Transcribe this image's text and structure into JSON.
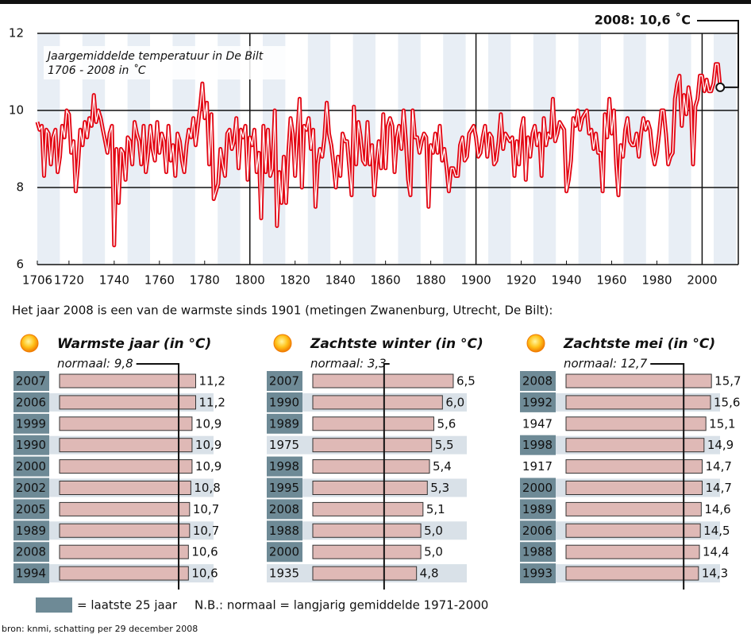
{
  "chart_data": [
    {
      "type": "line",
      "title": "Jaargemiddelde temperatuur in De Bilt",
      "subtitle": "1706 - 2008 in ˚C",
      "annotation": "2008: 10,6 ˚C",
      "color": "#e30613",
      "grid": true,
      "xlim": [
        1706,
        2016
      ],
      "ylim": [
        6,
        12
      ],
      "xticks": [
        1706,
        1720,
        1740,
        1760,
        1780,
        1800,
        1820,
        1840,
        1860,
        1880,
        1900,
        1920,
        1940,
        1960,
        1980,
        2000
      ],
      "yticks": [
        6,
        8,
        10,
        12
      ],
      "x": [
        1706,
        1707,
        1708,
        1709,
        1710,
        1711,
        1712,
        1713,
        1714,
        1715,
        1716,
        1717,
        1718,
        1719,
        1720,
        1721,
        1722,
        1723,
        1724,
        1725,
        1726,
        1727,
        1728,
        1729,
        1730,
        1731,
        1732,
        1733,
        1734,
        1735,
        1736,
        1737,
        1738,
        1739,
        1740,
        1741,
        1742,
        1743,
        1744,
        1745,
        1746,
        1747,
        1748,
        1749,
        1750,
        1751,
        1752,
        1753,
        1754,
        1755,
        1756,
        1757,
        1758,
        1759,
        1760,
        1761,
        1762,
        1763,
        1764,
        1765,
        1766,
        1767,
        1768,
        1769,
        1770,
        1771,
        1772,
        1773,
        1774,
        1775,
        1776,
        1777,
        1778,
        1779,
        1780,
        1781,
        1782,
        1783,
        1784,
        1785,
        1786,
        1787,
        1788,
        1789,
        1790,
        1791,
        1792,
        1793,
        1794,
        1795,
        1796,
        1797,
        1798,
        1799,
        1800,
        1801,
        1802,
        1803,
        1804,
        1805,
        1806,
        1807,
        1808,
        1809,
        1810,
        1811,
        1812,
        1813,
        1814,
        1815,
        1816,
        1817,
        1818,
        1819,
        1820,
        1821,
        1822,
        1823,
        1824,
        1825,
        1826,
        1827,
        1828,
        1829,
        1830,
        1831,
        1832,
        1833,
        1834,
        1835,
        1836,
        1837,
        1838,
        1839,
        1840,
        1841,
        1842,
        1843,
        1844,
        1845,
        1846,
        1847,
        1848,
        1849,
        1850,
        1851,
        1852,
        1853,
        1854,
        1855,
        1856,
        1857,
        1858,
        1859,
        1860,
        1861,
        1862,
        1863,
        1864,
        1865,
        1866,
        1867,
        1868,
        1869,
        1870,
        1871,
        1872,
        1873,
        1874,
        1875,
        1876,
        1877,
        1878,
        1879,
        1880,
        1881,
        1882,
        1883,
        1884,
        1885,
        1886,
        1887,
        1888,
        1889,
        1890,
        1891,
        1892,
        1893,
        1894,
        1895,
        1896,
        1897,
        1898,
        1899,
        1900,
        1901,
        1902,
        1903,
        1904,
        1905,
        1906,
        1907,
        1908,
        1909,
        1910,
        1911,
        1912,
        1913,
        1914,
        1915,
        1916,
        1917,
        1918,
        1919,
        1920,
        1921,
        1922,
        1923,
        1924,
        1925,
        1926,
        1927,
        1928,
        1929,
        1930,
        1931,
        1932,
        1933,
        1934,
        1935,
        1936,
        1937,
        1938,
        1939,
        1940,
        1941,
        1942,
        1943,
        1944,
        1945,
        1946,
        1947,
        1948,
        1949,
        1950,
        1951,
        1952,
        1953,
        1954,
        1955,
        1956,
        1957,
        1958,
        1959,
        1960,
        1961,
        1962,
        1963,
        1964,
        1965,
        1966,
        1967,
        1968,
        1969,
        1970,
        1971,
        1972,
        1973,
        1974,
        1975,
        1976,
        1977,
        1978,
        1979,
        1980,
        1981,
        1982,
        1983,
        1984,
        1985,
        1986,
        1987,
        1988,
        1989,
        1990,
        1991,
        1992,
        1993,
        1994,
        1995,
        1996,
        1997,
        1998,
        1999,
        2000,
        2001,
        2002,
        2003,
        2004,
        2005,
        2006,
        2007,
        2008
      ],
      "values": [
        9.7,
        9.5,
        9.6,
        8.3,
        9.5,
        9.4,
        8.6,
        9.3,
        9.5,
        8.4,
        8.8,
        9.6,
        9.3,
        10.0,
        9.9,
        8.9,
        9.2,
        7.9,
        8.6,
        9.5,
        9.1,
        9.7,
        9.3,
        9.8,
        9.6,
        10.4,
        9.7,
        10.0,
        9.8,
        9.5,
        9.2,
        8.9,
        9.4,
        9.6,
        6.5,
        9.0,
        7.6,
        9.0,
        8.9,
        8.2,
        9.3,
        9.2,
        8.6,
        9.7,
        9.4,
        9.2,
        8.6,
        9.6,
        8.4,
        8.9,
        9.6,
        9.0,
        8.7,
        9.7,
        8.9,
        9.4,
        9.2,
        8.4,
        9.6,
        8.7,
        9.1,
        8.3,
        9.4,
        9.2,
        8.7,
        8.4,
        9.1,
        9.5,
        9.3,
        9.8,
        9.1,
        9.6,
        10.1,
        10.7,
        9.8,
        10.2,
        8.6,
        9.9,
        7.7,
        7.9,
        8.1,
        9.0,
        8.6,
        8.3,
        9.4,
        9.5,
        9.0,
        9.2,
        9.8,
        8.5,
        9.5,
        9.3,
        9.6,
        8.2,
        9.3,
        9.1,
        9.5,
        8.4,
        8.9,
        7.2,
        9.6,
        8.4,
        9.5,
        8.3,
        8.5,
        10.0,
        7.0,
        8.4,
        7.6,
        8.8,
        7.6,
        8.9,
        9.8,
        9.4,
        8.3,
        9.4,
        10.3,
        8.0,
        9.6,
        9.5,
        9.8,
        9.0,
        9.5,
        7.5,
        8.6,
        9.0,
        8.8,
        9.3,
        10.2,
        9.4,
        9.1,
        8.6,
        8.0,
        8.8,
        8.3,
        9.4,
        9.2,
        9.2,
        8.5,
        7.8,
        10.1,
        8.6,
        9.7,
        9.3,
        8.7,
        8.6,
        9.7,
        8.6,
        9.1,
        7.8,
        8.6,
        9.2,
        8.5,
        9.9,
        8.5,
        9.6,
        9.8,
        9.6,
        8.4,
        9.3,
        9.6,
        9.0,
        10.0,
        9.2,
        8.2,
        7.8,
        10.0,
        9.3,
        9.3,
        8.9,
        9.2,
        9.4,
        9.3,
        7.5,
        9.1,
        8.9,
        9.4,
        8.9,
        9.6,
        8.7,
        9.0,
        8.5,
        7.9,
        8.5,
        8.5,
        8.3,
        8.3,
        9.1,
        9.3,
        8.7,
        8.8,
        9.4,
        9.5,
        9.6,
        9.3,
        8.8,
        8.9,
        9.3,
        9.6,
        8.8,
        9.4,
        9.3,
        8.6,
        8.7,
        9.2,
        9.9,
        9.0,
        9.4,
        9.3,
        9.2,
        9.3,
        8.3,
        9.2,
        8.6,
        9.5,
        9.8,
        8.2,
        9.3,
        8.8,
        9.4,
        9.6,
        9.1,
        9.4,
        8.3,
        9.8,
        9.1,
        9.4,
        9.3,
        10.3,
        9.2,
        9.4,
        9.7,
        9.6,
        9.5,
        7.9,
        8.2,
        8.7,
        9.8,
        9.6,
        10.0,
        9.5,
        9.8,
        9.9,
        10.0,
        9.4,
        9.5,
        9.0,
        9.4,
        8.9,
        8.9,
        7.9,
        9.9,
        9.3,
        10.3,
        9.4,
        10.0,
        8.6,
        7.8,
        9.1,
        8.8,
        9.5,
        9.8,
        9.2,
        9.1,
        9.1,
        9.4,
        8.8,
        9.4,
        9.8,
        9.5,
        9.7,
        9.5,
        8.9,
        8.6,
        8.9,
        9.4,
        10.0,
        10.0,
        9.4,
        8.6,
        8.8,
        8.9,
        10.3,
        10.7,
        10.9,
        9.6,
        10.4,
        9.9,
        10.6,
        10.2,
        8.6,
        10.1,
        10.3,
        10.9,
        10.9,
        10.5,
        10.8,
        10.5,
        10.5,
        10.7,
        11.2,
        11.2,
        10.6
      ]
    },
    {
      "type": "bar",
      "orientation": "horizontal",
      "title": "Warmste jaar (in °C)",
      "color": "#dfb9b6",
      "xlim": [
        0,
        16
      ],
      "reference": {
        "value": 9.8,
        "label": "normaal: 9,8"
      },
      "categories": [
        "2007",
        "2006",
        "1999",
        "1990",
        "2000",
        "2002",
        "2005",
        "1989",
        "2008",
        "1994"
      ],
      "values": [
        11.2,
        11.2,
        10.9,
        10.9,
        10.9,
        10.8,
        10.7,
        10.7,
        10.6,
        10.6
      ],
      "value_labels": [
        "11,2",
        "11,2",
        "10,9",
        "10,9",
        "10,9",
        "10,8",
        "10,7",
        "10,7",
        "10,6",
        "10,6"
      ],
      "recent": [
        true,
        true,
        true,
        true,
        true,
        true,
        true,
        true,
        true,
        true
      ]
    },
    {
      "type": "bar",
      "orientation": "horizontal",
      "title": "Zachtste winter (in °C)",
      "color": "#dfb9b6",
      "xlim": [
        0,
        9
      ],
      "reference": {
        "value": 3.3,
        "label": "normaal: 3,3"
      },
      "categories": [
        "2007",
        "1990",
        "1989",
        "1975",
        "1998",
        "1995",
        "2008",
        "1988",
        "2000",
        "1935"
      ],
      "values": [
        6.5,
        6.0,
        5.6,
        5.5,
        5.4,
        5.3,
        5.1,
        5.0,
        5.0,
        4.8
      ],
      "value_labels": [
        "6,5",
        "6,0",
        "5,6",
        "5,5",
        "5,4",
        "5,3",
        "5,1",
        "5,0",
        "5,0",
        "4,8"
      ],
      "recent": [
        true,
        true,
        true,
        false,
        true,
        true,
        true,
        true,
        true,
        false
      ]
    },
    {
      "type": "bar",
      "orientation": "horizontal",
      "title": "Zachtste mei (in °C)",
      "color": "#dfb9b6",
      "xlim": [
        0,
        21
      ],
      "reference": {
        "value": 12.7,
        "label": "normaal: 12,7"
      },
      "categories": [
        "2008",
        "1992",
        "1947",
        "1998",
        "1917",
        "2000",
        "1989",
        "2006",
        "1988",
        "1993"
      ],
      "values": [
        15.7,
        15.6,
        15.1,
        14.9,
        14.7,
        14.7,
        14.6,
        14.5,
        14.4,
        14.3
      ],
      "value_labels": [
        "15,7",
        "15,6",
        "15,1",
        "14,9",
        "14,7",
        "14,7",
        "14,6",
        "14,5",
        "14,4",
        "14,3"
      ],
      "recent": [
        true,
        true,
        false,
        true,
        false,
        true,
        true,
        true,
        true,
        true
      ]
    }
  ],
  "intro": "Het jaar 2008 is een van de warmste sinds 1901 (metingen Zwanenburg, Utrecht, De Bilt):",
  "legend_recent": "= laatste 25 jaar",
  "note": "N.B.: normaal = langjarig gemiddelde 1971-2000",
  "source": "bron: knmi, schatting per 29 december 2008"
}
